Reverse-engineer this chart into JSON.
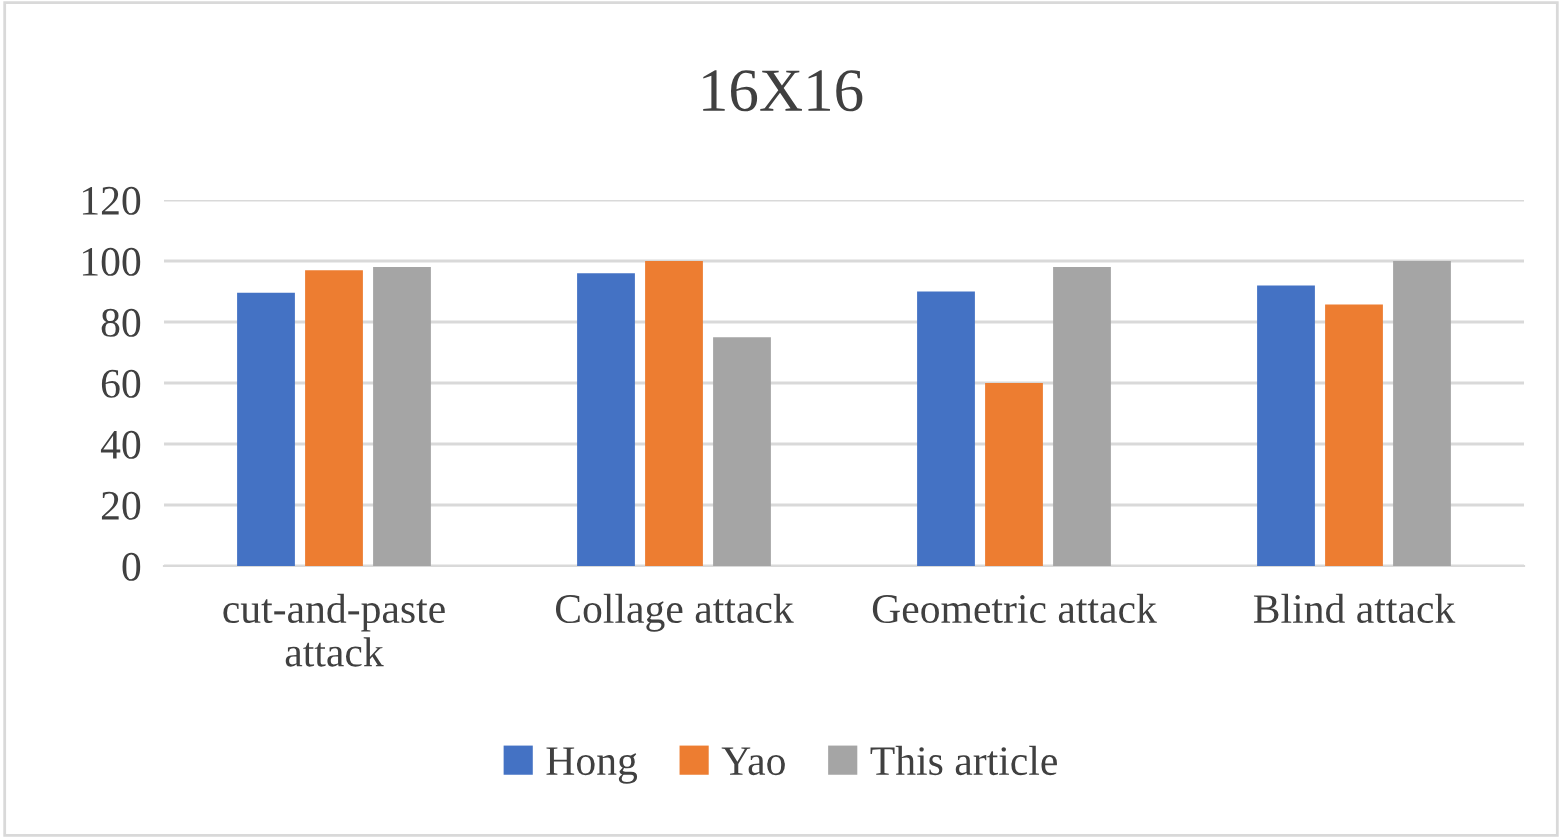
{
  "chart_data": {
    "type": "bar",
    "title": "16X16",
    "categories": [
      "cut-and-paste attack",
      "Collage attack",
      "Geometric attack",
      "Blind attack"
    ],
    "series": [
      {
        "name": "Hong",
        "color": "#4472c4",
        "values": [
          89.6,
          96,
          90,
          92
        ]
      },
      {
        "name": "Yao",
        "color": "#ed7d31",
        "values": [
          97,
          100,
          60,
          85.7
        ]
      },
      {
        "name": "This article",
        "color": "#a5a5a5",
        "values": [
          98,
          75,
          98,
          100
        ]
      }
    ],
    "ylim": [
      0,
      120
    ],
    "yticks": [
      0,
      20,
      40,
      60,
      80,
      100,
      120
    ],
    "grid": "y",
    "legend": "bottom"
  }
}
